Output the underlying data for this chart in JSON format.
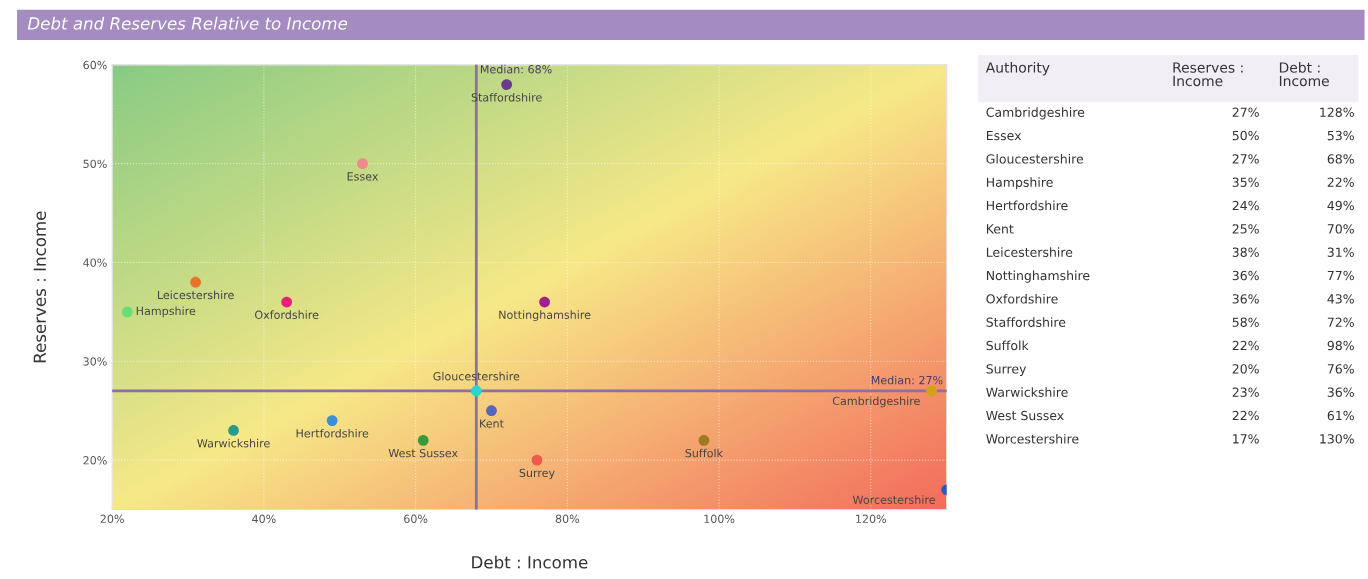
{
  "chart_data": [
    {
      "type": "scatter",
      "title": "Debt and Reserves Relative to Income",
      "xlabel": "Debt : Income",
      "ylabel": "Reserves : Income",
      "xlim": [
        20,
        130
      ],
      "ylim": [
        15,
        60
      ],
      "xticks": [
        {
          "value": 20,
          "label": "20%"
        },
        {
          "value": 40,
          "label": "40%"
        },
        {
          "value": 60,
          "label": "60%"
        },
        {
          "value": 80,
          "label": "80%"
        },
        {
          "value": 100,
          "label": "100%"
        },
        {
          "value": 120,
          "label": "120%"
        }
      ],
      "yticks": [
        {
          "value": 20,
          "label": "20%"
        },
        {
          "value": 30,
          "label": "30%"
        },
        {
          "value": 40,
          "label": "40%"
        },
        {
          "value": 50,
          "label": "50%"
        },
        {
          "value": 60,
          "label": "60%"
        }
      ],
      "grid": true,
      "marker": "circle",
      "ref_lines": [
        {
          "axis": "x",
          "value": 68,
          "label": "Median: 68%",
          "color": "#8a72a0"
        },
        {
          "axis": "y",
          "value": 27,
          "label": "Median: 27%",
          "color": "#8a72a0"
        }
      ],
      "series": [
        {
          "name": "Cambridgeshire",
          "color": "#d4a017",
          "x": [
            128
          ],
          "values": [
            27
          ]
        },
        {
          "name": "Essex",
          "color": "#f08a8a",
          "x": [
            53
          ],
          "values": [
            50
          ]
        },
        {
          "name": "Gloucestershire",
          "color": "#2ad4d4",
          "x": [
            68
          ],
          "values": [
            27
          ]
        },
        {
          "name": "Hampshire",
          "color": "#66dd77",
          "x": [
            22
          ],
          "values": [
            35
          ]
        },
        {
          "name": "Hertfordshire",
          "color": "#3a8fd6",
          "x": [
            49
          ],
          "values": [
            24
          ]
        },
        {
          "name": "Kent",
          "color": "#5566bb",
          "x": [
            70
          ],
          "values": [
            25
          ]
        },
        {
          "name": "Leicestershire",
          "color": "#e8742a",
          "x": [
            31
          ],
          "values": [
            38
          ]
        },
        {
          "name": "Nottinghamshire",
          "color": "#a0208a",
          "x": [
            77
          ],
          "values": [
            36
          ]
        },
        {
          "name": "Oxfordshire",
          "color": "#e8207a",
          "x": [
            43
          ],
          "values": [
            36
          ]
        },
        {
          "name": "Staffordshire",
          "color": "#6a3d8a",
          "x": [
            72
          ],
          "values": [
            58
          ]
        },
        {
          "name": "Suffolk",
          "color": "#a07a20",
          "x": [
            98
          ],
          "values": [
            22
          ]
        },
        {
          "name": "Surrey",
          "color": "#f05a4a",
          "x": [
            76
          ],
          "values": [
            20
          ]
        },
        {
          "name": "Warwickshire",
          "color": "#2a9a8a",
          "x": [
            36
          ],
          "values": [
            23
          ]
        },
        {
          "name": "West Sussex",
          "color": "#3a9a3a",
          "x": [
            61
          ],
          "values": [
            22
          ]
        },
        {
          "name": "Worcestershire",
          "color": "#2a5abf",
          "x": [
            130
          ],
          "values": [
            17
          ]
        }
      ]
    },
    {
      "type": "other",
      "annotations": [
        "Authority"
      ],
      "categories": [
        "Cambridgeshire",
        "Essex",
        "Gloucestershire",
        "Hampshire",
        "Hertfordshire",
        "Kent",
        "Leicestershire",
        "Nottinghamshire",
        "Oxfordshire",
        "Staffordshire",
        "Suffolk",
        "Surrey",
        "Warwickshire",
        "West Sussex",
        "Worcestershire"
      ],
      "series": [
        {
          "name": "Reserves : Income",
          "color": "#333333",
          "values": [
            27,
            50,
            27,
            35,
            24,
            25,
            38,
            36,
            36,
            58,
            22,
            20,
            23,
            22,
            17
          ],
          "value_labels": [
            "27%",
            "50%",
            "27%",
            "35%",
            "24%",
            "25%",
            "38%",
            "36%",
            "36%",
            "58%",
            "22%",
            "20%",
            "23%",
            "22%",
            "17%"
          ]
        },
        {
          "name": "Debt : Income",
          "color": "#333333",
          "values": [
            128,
            53,
            68,
            22,
            49,
            70,
            31,
            77,
            43,
            72,
            98,
            76,
            36,
            61,
            130
          ],
          "value_labels": [
            "128%",
            "53%",
            "68%",
            "22%",
            "49%",
            "70%",
            "31%",
            "77%",
            "43%",
            "72%",
            "98%",
            "76%",
            "36%",
            "61%",
            "130%"
          ]
        }
      ]
    }
  ]
}
